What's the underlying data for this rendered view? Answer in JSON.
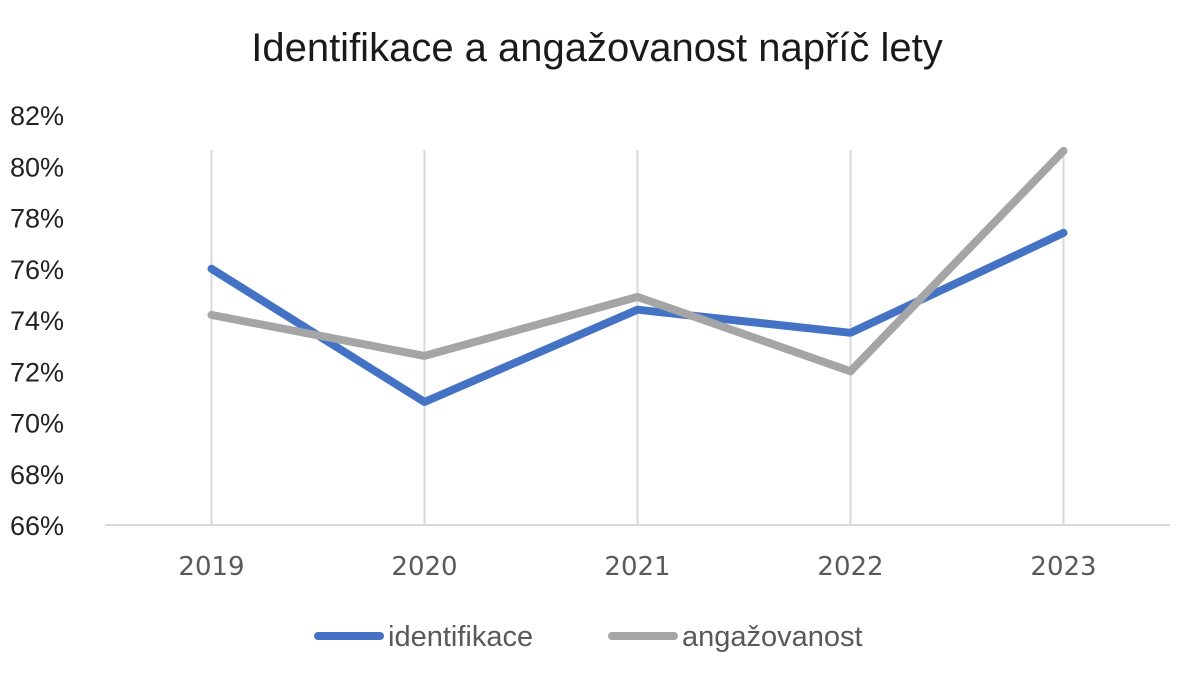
{
  "chart_data": {
    "type": "line",
    "title": "Identifikace a angažovanost napříč lety",
    "categories": [
      "2019",
      "2020",
      "2021",
      "2022",
      "2023"
    ],
    "y_tick_labels": [
      "66%",
      "68%",
      "70%",
      "72%",
      "74%",
      "76%",
      "78%",
      "80%",
      "82%"
    ],
    "ylim": [
      66,
      82
    ],
    "y_unit": "%",
    "grid": "vertical",
    "legend_position": "bottom",
    "series": [
      {
        "name": "identifikace",
        "values": [
          76.0,
          70.8,
          74.4,
          73.5,
          77.4
        ],
        "color": "#4472C4"
      },
      {
        "name": "angažovanost",
        "values": [
          74.2,
          72.6,
          74.9,
          72.0,
          80.6
        ],
        "color": "#A5A5A5"
      }
    ],
    "gridline_color": "#D9D9D9",
    "axis_color": "#D9D9D9"
  }
}
